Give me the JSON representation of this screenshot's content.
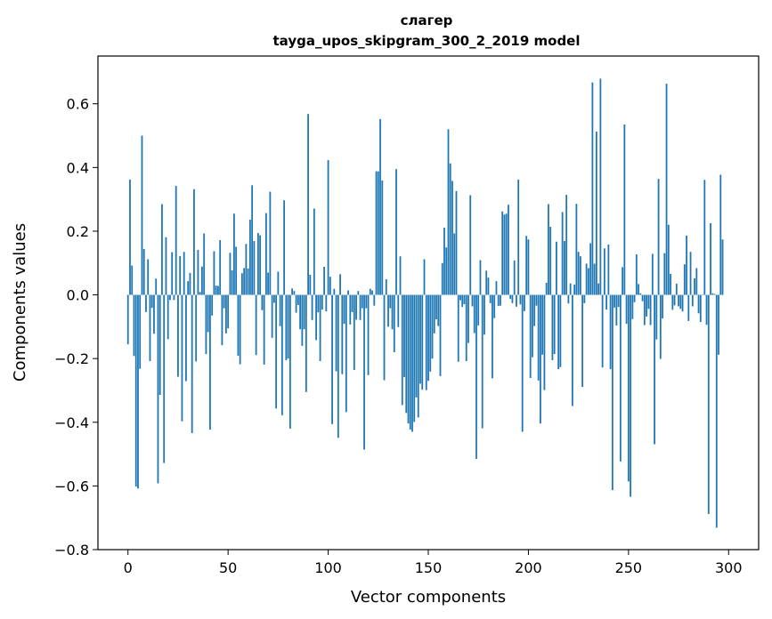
{
  "chart_data": {
    "type": "bar",
    "title_line1": "слагер",
    "title_line2": "tayga_upos_skipgram_300_2_2019 model",
    "xlabel": "Vector components",
    "ylabel": "Components values",
    "xlim": [
      -15,
      315
    ],
    "ylim": [
      -0.8,
      0.75
    ],
    "xticks": [
      0,
      50,
      100,
      150,
      200,
      250,
      300
    ],
    "xtick_labels": [
      "0",
      "50",
      "100",
      "150",
      "200",
      "250",
      "300"
    ],
    "yticks": [
      -0.8,
      -0.6,
      -0.4,
      -0.2,
      0.0,
      0.2,
      0.4,
      0.6
    ],
    "ytick_labels": [
      "−0.8",
      "−0.6",
      "−0.4",
      "−0.2",
      "0.0",
      "0.2",
      "0.4",
      "0.6"
    ],
    "bar_color": "#1f77b4",
    "values": [
      -0.155,
      0.362,
      0.092,
      -0.192,
      -0.602,
      -0.608,
      -0.232,
      0.5,
      0.144,
      -0.054,
      0.112,
      -0.208,
      -0.041,
      -0.122,
      0.051,
      -0.592,
      -0.314,
      0.285,
      -0.528,
      0.181,
      -0.139,
      -0.016,
      0.134,
      -0.016,
      0.342,
      -0.257,
      0.122,
      -0.397,
      0.135,
      -0.271,
      0.043,
      0.069,
      -0.434,
      0.332,
      -0.209,
      0.141,
      0.009,
      0.089,
      0.193,
      -0.186,
      -0.117,
      -0.423,
      -0.065,
      0.137,
      0.029,
      0.028,
      0.172,
      -0.158,
      -0.042,
      -0.121,
      -0.105,
      0.132,
      0.077,
      0.255,
      0.151,
      -0.191,
      -0.218,
      0.068,
      0.084,
      0.16,
      0.083,
      0.236,
      0.344,
      0.169,
      -0.189,
      0.194,
      0.187,
      -0.048,
      -0.219,
      0.257,
      0.07,
      0.324,
      -0.135,
      -0.025,
      -0.357,
      0.073,
      -0.098,
      -0.378,
      0.297,
      -0.205,
      -0.2,
      -0.42,
      0.02,
      0.012,
      -0.056,
      -0.032,
      -0.108,
      -0.16,
      -0.108,
      -0.305,
      0.568,
      0.063,
      -0.079,
      0.271,
      -0.142,
      -0.055,
      -0.208,
      -0.046,
      0.088,
      -0.052,
      0.423,
      0.057,
      -0.406,
      0.019,
      -0.24,
      -0.449,
      0.065,
      -0.249,
      -0.091,
      -0.368,
      0.014,
      -0.093,
      -0.054,
      -0.236,
      -0.078,
      0.012,
      -0.079,
      -0.042,
      -0.486,
      -0.042,
      -0.252,
      0.019,
      0.014,
      -0.034,
      0.388,
      0.388,
      0.552,
      0.359,
      -0.268,
      0.049,
      -0.1,
      -0.042,
      -0.108,
      -0.18,
      0.395,
      -0.101,
      0.121,
      -0.346,
      -0.258,
      -0.371,
      -0.404,
      -0.423,
      -0.43,
      -0.399,
      -0.322,
      -0.385,
      -0.279,
      -0.298,
      0.112,
      -0.299,
      -0.27,
      -0.241,
      -0.2,
      -0.121,
      -0.077,
      -0.098,
      -0.255,
      0.1,
      0.211,
      0.149,
      0.52,
      0.413,
      0.358,
      0.193,
      0.326,
      -0.21,
      -0.017,
      -0.038,
      -0.029,
      -0.208,
      -0.151,
      0.313,
      -0.036,
      -0.12,
      -0.515,
      -0.096,
      0.109,
      -0.419,
      -0.125,
      0.076,
      0.054,
      -0.026,
      -0.262,
      -0.073,
      0.043,
      -0.035,
      -0.034,
      0.262,
      0.252,
      0.255,
      0.283,
      -0.013,
      -0.026,
      0.108,
      -0.037,
      0.362,
      -0.03,
      -0.43,
      -0.051,
      0.185,
      0.174,
      -0.261,
      -0.196,
      -0.098,
      -0.034,
      -0.269,
      -0.404,
      -0.188,
      -0.299,
      0.038,
      0.285,
      0.214,
      -0.205,
      -0.186,
      0.167,
      -0.233,
      -0.227,
      0.26,
      0.169,
      0.314,
      -0.027,
      0.036,
      -0.349,
      0.032,
      0.286,
      0.135,
      0.121,
      -0.289,
      -0.026,
      0.098,
      0.084,
      0.162,
      0.667,
      0.098,
      0.513,
      0.036,
      0.679,
      -0.228,
      0.146,
      -0.046,
      0.158,
      -0.233,
      -0.613,
      -0.04,
      -0.096,
      -0.038,
      -0.523,
      0.087,
      0.535,
      -0.091,
      -0.586,
      -0.634,
      -0.076,
      -0.023,
      0.127,
      0.034,
      0.005,
      -0.02,
      -0.095,
      -0.068,
      -0.044,
      -0.095,
      0.129,
      -0.469,
      -0.14,
      0.364,
      -0.201,
      -0.074,
      0.131,
      0.663,
      0.22,
      0.066,
      -0.047,
      -0.033,
      0.035,
      -0.036,
      -0.044,
      -0.052,
      0.096,
      0.186,
      -0.082,
      0.135,
      -0.036,
      0.052,
      0.084,
      -0.058,
      -0.085,
      0.001,
      0.361,
      -0.094,
      -0.688,
      0.225,
      0.005,
      0.003,
      -0.731,
      -0.188,
      0.377,
      0.174
    ]
  }
}
